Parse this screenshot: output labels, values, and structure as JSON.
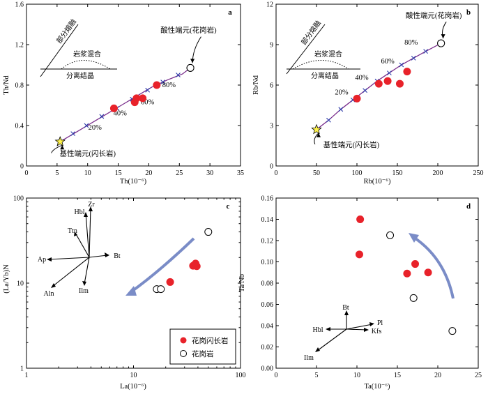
{
  "chart_data": [
    {
      "type": "scatter",
      "panel_label": "a",
      "xlabel": "Th(10⁻⁶)",
      "ylabel": "Th/Nd",
      "xlim": [
        0,
        35
      ],
      "ylim": [
        0,
        1.6
      ],
      "xticks": [
        "0",
        "5",
        "10",
        "15",
        "20",
        "25",
        "30",
        "35"
      ],
      "yticks": [
        "0",
        "0.4",
        "0.8",
        "1.2",
        "1.6"
      ],
      "series": [
        {
          "name": "花岗闪长岩",
          "marker": "filled-circle",
          "points": [
            [
              14.3,
              0.57
            ],
            [
              17.7,
              0.63
            ],
            [
              18.0,
              0.67
            ],
            [
              19.0,
              0.67
            ],
            [
              21.3,
              0.8
            ]
          ]
        },
        {
          "name": "花岗岩",
          "marker": "open-circle",
          "points": [
            [
              26.8,
              0.97
            ]
          ]
        }
      ],
      "mixing_curve": {
        "points": [
          [
            5.5,
            0.24
          ],
          [
            8.0,
            0.33
          ],
          [
            10.5,
            0.42
          ],
          [
            13.0,
            0.51
          ],
          [
            15.5,
            0.6
          ],
          [
            18.0,
            0.69
          ],
          [
            20.5,
            0.78
          ],
          [
            23.0,
            0.85
          ],
          [
            25.5,
            0.91
          ],
          [
            26.8,
            0.97
          ]
        ],
        "ticks": [
          [
            7.6,
            0.32
          ],
          [
            9.8,
            0.4
          ],
          [
            12.3,
            0.49
          ],
          [
            14.8,
            0.57
          ],
          [
            17.3,
            0.66
          ],
          [
            19.8,
            0.75
          ],
          [
            22.3,
            0.83
          ],
          [
            24.8,
            0.9
          ]
        ],
        "labels": [
          {
            "text": "20%",
            "at": [
              11.2,
              0.36
            ]
          },
          {
            "text": "40%",
            "at": [
              15.3,
              0.5
            ]
          },
          {
            "text": "60%",
            "at": [
              19.8,
              0.61
            ]
          },
          {
            "text": "80%",
            "at": [
              23.3,
              0.78
            ]
          }
        ]
      },
      "endmembers": [
        {
          "label": "基性端元(闪长岩)",
          "point": [
            5.5,
            0.24
          ],
          "marker": "star",
          "text_at": [
            10.0,
            0.1
          ]
        },
        {
          "label": "酸性端元(花岗岩)",
          "point": [
            26.8,
            0.97
          ],
          "marker": "open-circle",
          "text_at": [
            26.5,
            1.32
          ]
        }
      ],
      "inset": {
        "partial_melting": "部分熔融",
        "magma_mixing": "岩浆混合",
        "fractional_crystallization": "分离结晶"
      }
    },
    {
      "type": "scatter",
      "panel_label": "b",
      "xlabel": "Rb(10⁻⁶)",
      "ylabel": "Rb/Nd",
      "xlim": [
        0,
        250
      ],
      "ylim": [
        0,
        12
      ],
      "xticks": [
        "0",
        "50",
        "100",
        "150",
        "200",
        "250"
      ],
      "yticks": [
        "0",
        "3",
        "6",
        "9",
        "12"
      ],
      "series": [
        {
          "name": "花岗闪长岩",
          "marker": "filled-circle",
          "points": [
            [
              100,
              5.0
            ],
            [
              127,
              6.1
            ],
            [
              138,
              6.3
            ],
            [
              153,
              6.1
            ],
            [
              162,
              7.0
            ]
          ]
        },
        {
          "name": "花岗岩",
          "marker": "open-circle",
          "points": [
            [
              204,
              9.1
            ]
          ]
        }
      ],
      "mixing_curve": {
        "points": [
          [
            50,
            2.7
          ],
          [
            65,
            3.4
          ],
          [
            80,
            4.2
          ],
          [
            95,
            4.9
          ],
          [
            110,
            5.6
          ],
          [
            125,
            6.3
          ],
          [
            140,
            6.9
          ],
          [
            155,
            7.5
          ],
          [
            170,
            8.0
          ],
          [
            185,
            8.5
          ],
          [
            204,
            9.1
          ]
        ],
        "ticks": [
          [
            65,
            3.4
          ],
          [
            80,
            4.2
          ],
          [
            95,
            4.9
          ],
          [
            110,
            5.6
          ],
          [
            125,
            6.3
          ],
          [
            140,
            6.9
          ],
          [
            155,
            7.5
          ],
          [
            170,
            8.0
          ],
          [
            185,
            8.5
          ]
        ],
        "labels": [
          {
            "text": "20%",
            "at": [
              81,
              5.3
            ]
          },
          {
            "text": "40%",
            "at": [
              106,
              6.4
            ]
          },
          {
            "text": "60%",
            "at": [
              138,
              7.6
            ]
          },
          {
            "text": "80%",
            "at": [
              167,
              9.0
            ]
          }
        ]
      },
      "endmembers": [
        {
          "label": "基性端元(闪长岩)",
          "point": [
            50,
            2.7
          ],
          "marker": "star",
          "text_at": [
            93,
            1.4
          ]
        },
        {
          "label": "酸性端元(花岗岩)",
          "point": [
            204,
            9.1
          ],
          "marker": "open-circle",
          "text_at": [
            195,
            11.0
          ]
        }
      ],
      "inset": {
        "partial_melting": "部分熔融",
        "magma_mixing": "岩浆混合",
        "fractional_crystallization": "分离结晶"
      }
    },
    {
      "type": "scatter",
      "panel_label": "c",
      "xlabel": "La(10⁻⁶)",
      "ylabel": "(La/Yb)N",
      "xscale": "log",
      "yscale": "log",
      "xlim": [
        1,
        100
      ],
      "ylim": [
        1,
        100
      ],
      "xticks": [
        "1",
        "10",
        "100"
      ],
      "yticks": [
        "1",
        "10",
        "100"
      ],
      "series": [
        {
          "name": "花岗闪长岩",
          "marker": "filled-circle",
          "points": [
            [
              22,
              10.3
            ],
            [
              36,
              16.0
            ],
            [
              38,
              17.0
            ],
            [
              39,
              15.8
            ]
          ]
        },
        {
          "name": "花岗岩",
          "marker": "open-circle",
          "points": [
            [
              16.5,
              8.5
            ],
            [
              18.0,
              8.5
            ],
            [
              50,
              40
            ]
          ]
        }
      ],
      "vectors": [
        "Zr",
        "Hbl",
        "Ttn",
        "Bt",
        "Ap",
        "Aln",
        "Ilm"
      ],
      "legend": {
        "position": "bottom-right",
        "entries": [
          "花岗闪长岩",
          "花岗岩"
        ]
      }
    },
    {
      "type": "scatter",
      "panel_label": "d",
      "xlabel": "Ta(10⁻⁶)",
      "ylabel": "Ta/Nb",
      "xlim": [
        0,
        25
      ],
      "ylim": [
        0,
        0.16
      ],
      "xticks": [
        "0",
        "5",
        "10",
        "15",
        "20",
        "25"
      ],
      "yticks": [
        "0.00",
        "0.02",
        "0.04",
        "0.06",
        "0.08",
        "0.10",
        "0.12",
        "0.14",
        "0.16"
      ],
      "series": [
        {
          "name": "花岗闪长岩",
          "marker": "filled-circle",
          "points": [
            [
              10.4,
              0.14
            ],
            [
              10.3,
              0.107
            ],
            [
              16.2,
              0.089
            ],
            [
              17.2,
              0.098
            ],
            [
              18.8,
              0.09
            ]
          ]
        },
        {
          "name": "花岗岩",
          "marker": "open-circle",
          "points": [
            [
              14.1,
              0.125
            ],
            [
              17.0,
              0.066
            ],
            [
              21.8,
              0.035
            ]
          ]
        }
      ],
      "vectors": [
        "Bt",
        "Pl",
        "Kfs",
        "Hbl",
        "Ilm"
      ]
    }
  ],
  "colors": {
    "filled_marker": "#e8222a",
    "mixing_curve": "#7a2e8c",
    "tick_marks": "#2c3aa8",
    "trend_arrow": "#7a8cc7",
    "star": "#fff34a"
  }
}
